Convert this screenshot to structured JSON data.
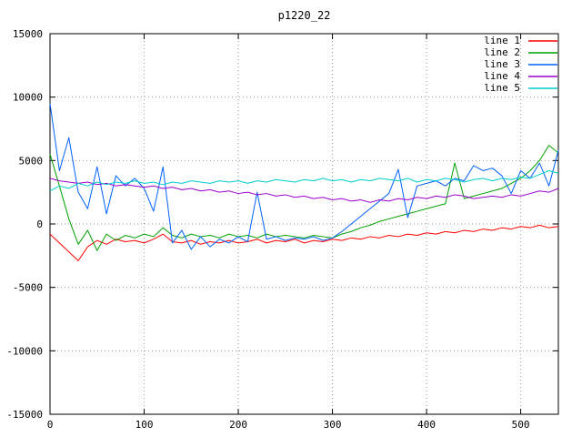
{
  "chart_data": {
    "type": "line",
    "title": "p1220_22",
    "xlabel": "",
    "ylabel": "",
    "xlim": [
      0,
      540
    ],
    "ylim": [
      -15000,
      15000
    ],
    "xticks": [
      0,
      100,
      200,
      300,
      400,
      500
    ],
    "yticks": [
      -15000,
      -10000,
      -5000,
      0,
      5000,
      10000,
      15000
    ],
    "grid": true,
    "grid_style": "dotted",
    "grid_color": "#9a9a9a",
    "border_color": "#000000",
    "background_color": "#ffffff",
    "legend_position": "top-right",
    "x": [
      0,
      10,
      20,
      30,
      40,
      50,
      60,
      70,
      80,
      90,
      100,
      110,
      120,
      130,
      140,
      150,
      160,
      170,
      180,
      190,
      200,
      210,
      220,
      230,
      240,
      250,
      260,
      270,
      280,
      290,
      300,
      310,
      320,
      330,
      340,
      350,
      360,
      370,
      380,
      390,
      400,
      410,
      420,
      430,
      440,
      450,
      460,
      470,
      480,
      490,
      500,
      510,
      520,
      530,
      540
    ],
    "series": [
      {
        "name": "line 1",
        "color": "#ff0000",
        "values": [
          -800,
          -1500,
          -2200,
          -2900,
          -1800,
          -1300,
          -1600,
          -1200,
          -1400,
          -1300,
          -1500,
          -1200,
          -800,
          -1400,
          -1500,
          -1300,
          -1600,
          -1400,
          -1500,
          -1300,
          -1500,
          -1400,
          -1200,
          -1500,
          -1300,
          -1400,
          -1200,
          -1500,
          -1300,
          -1400,
          -1200,
          -1300,
          -1100,
          -1200,
          -1000,
          -1100,
          -900,
          -1000,
          -800,
          -900,
          -700,
          -800,
          -600,
          -700,
          -500,
          -600,
          -400,
          -500,
          -300,
          -400,
          -200,
          -300,
          -100,
          -300,
          -200
        ]
      },
      {
        "name": "line 2",
        "color": "#00a000",
        "values": [
          5500,
          3000,
          400,
          -1600,
          -500,
          -2100,
          -800,
          -1300,
          -900,
          -1100,
          -800,
          -1000,
          -300,
          -900,
          -1100,
          -800,
          -1000,
          -900,
          -1100,
          -800,
          -1000,
          -900,
          -1100,
          -800,
          -1000,
          -900,
          -1000,
          -1100,
          -900,
          -1000,
          -1100,
          -800,
          -600,
          -300,
          -100,
          200,
          400,
          600,
          800,
          1000,
          1200,
          1400,
          1600,
          4800,
          2000,
          2200,
          2400,
          2600,
          2800,
          3200,
          3600,
          4200,
          5000,
          6200,
          5600
        ]
      },
      {
        "name": "line 3",
        "color": "#0060ff",
        "values": [
          9500,
          4200,
          6800,
          2500,
          1200,
          4500,
          800,
          3800,
          3000,
          3600,
          2800,
          1000,
          4500,
          -1500,
          -500,
          -2000,
          -1000,
          -1800,
          -1200,
          -1500,
          -1000,
          -1400,
          2500,
          -1200,
          -1000,
          -1300,
          -1100,
          -1200,
          -1000,
          -1300,
          -1100,
          -600,
          0,
          600,
          1200,
          1800,
          2400,
          4300,
          500,
          3000,
          3200,
          3400,
          3000,
          3600,
          3400,
          4600,
          4200,
          4400,
          3800,
          2400,
          4200,
          3600,
          4800,
          3000,
          5800
        ]
      },
      {
        "name": "line 4",
        "color": "#9900cc",
        "values": [
          3600,
          3400,
          3300,
          3200,
          3300,
          3100,
          3200,
          3000,
          3100,
          3000,
          2900,
          3000,
          2800,
          2900,
          2700,
          2800,
          2600,
          2700,
          2500,
          2600,
          2400,
          2500,
          2300,
          2400,
          2200,
          2300,
          2100,
          2200,
          2000,
          2100,
          1900,
          2000,
          1800,
          1900,
          1700,
          1900,
          1800,
          2000,
          1900,
          2100,
          2000,
          2200,
          2100,
          2300,
          2200,
          2000,
          2100,
          2200,
          2100,
          2300,
          2200,
          2400,
          2600,
          2500,
          2800
        ]
      },
      {
        "name": "line 5",
        "color": "#00cccc",
        "values": [
          2600,
          3000,
          2800,
          3200,
          3000,
          3300,
          3100,
          3300,
          3200,
          3400,
          3200,
          3300,
          3100,
          3300,
          3200,
          3400,
          3300,
          3200,
          3400,
          3300,
          3400,
          3200,
          3400,
          3300,
          3500,
          3400,
          3300,
          3500,
          3400,
          3600,
          3400,
          3500,
          3300,
          3500,
          3400,
          3600,
          3500,
          3400,
          3600,
          3300,
          3500,
          3400,
          3600,
          3500,
          3300,
          3500,
          3600,
          3400,
          3600,
          3500,
          3700,
          3600,
          3900,
          4200,
          4000
        ]
      }
    ]
  }
}
